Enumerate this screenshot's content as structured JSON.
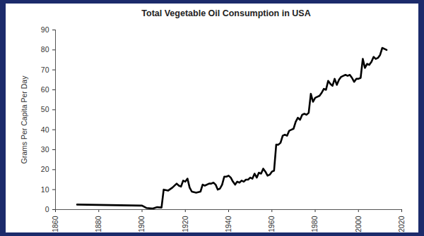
{
  "chart_data": {
    "type": "line",
    "title": "Total Vegetable Oil Consumption in USA",
    "y_label": "Grams Per Capita Per Day",
    "color": "#000000",
    "grid": false,
    "xlim": [
      1860,
      2020
    ],
    "xticks": [
      1860,
      1880,
      1900,
      1920,
      1940,
      1960,
      1980,
      2000,
      2020
    ],
    "ylim": [
      0,
      90
    ],
    "yticks": [
      0,
      10,
      20,
      30,
      40,
      50,
      60,
      70,
      80,
      90
    ],
    "x": [
      1870,
      1900,
      1902,
      1905,
      1907,
      1909,
      1910,
      1912,
      1914,
      1916,
      1917,
      1918,
      1919,
      1920,
      1921,
      1922,
      1923,
      1925,
      1927,
      1928,
      1929,
      1931,
      1932,
      1933,
      1934,
      1935,
      1936,
      1937,
      1938,
      1939,
      1940,
      1941,
      1942,
      1943,
      1944,
      1945,
      1946,
      1947,
      1948,
      1949,
      1950,
      1951,
      1952,
      1953,
      1954,
      1955,
      1956,
      1957,
      1958,
      1959,
      1960,
      1961,
      1962,
      1963,
      1964,
      1965,
      1966,
      1967,
      1968,
      1969,
      1970,
      1971,
      1972,
      1973,
      1974,
      1975,
      1976,
      1977,
      1978,
      1979,
      1980,
      1981,
      1982,
      1983,
      1984,
      1985,
      1986,
      1987,
      1988,
      1989,
      1990,
      1991,
      1992,
      1993,
      1994,
      1995,
      1996,
      1997,
      1998,
      1999,
      2000,
      2001,
      2002,
      2003,
      2004,
      2005,
      2006,
      2007,
      2008,
      2009,
      2010,
      2011,
      2012,
      2013
    ],
    "values": [
      2.5,
      2,
      0.8,
      0.5,
      1.2,
      1,
      10,
      9.5,
      11,
      13,
      12,
      11.5,
      14.5,
      14,
      15.5,
      11,
      9,
      8.5,
      9,
      12.5,
      12,
      13,
      13,
      13.5,
      12.5,
      10,
      10.5,
      12.5,
      16.5,
      16.5,
      17,
      16,
      14,
      12.5,
      14,
      13.5,
      14.5,
      14,
      15,
      15,
      16,
      15.5,
      18,
      16,
      18.5,
      18,
      20.5,
      19,
      17,
      17.5,
      19,
      19.5,
      32.5,
      32.5,
      33.5,
      37,
      37.5,
      37,
      39.5,
      40,
      40.5,
      44,
      46,
      45,
      47.5,
      48,
      47.5,
      48.5,
      58,
      54,
      56,
      56.5,
      57,
      58.5,
      60.5,
      60,
      64.5,
      63,
      62,
      65.5,
      62.5,
      65,
      66.5,
      67,
      67.5,
      67,
      67.5,
      66,
      64,
      65.5,
      65.5,
      66,
      75.5,
      71,
      73,
      72.5,
      74,
      76.5,
      75.5,
      76,
      77.5,
      81,
      80.5,
      80
    ]
  }
}
